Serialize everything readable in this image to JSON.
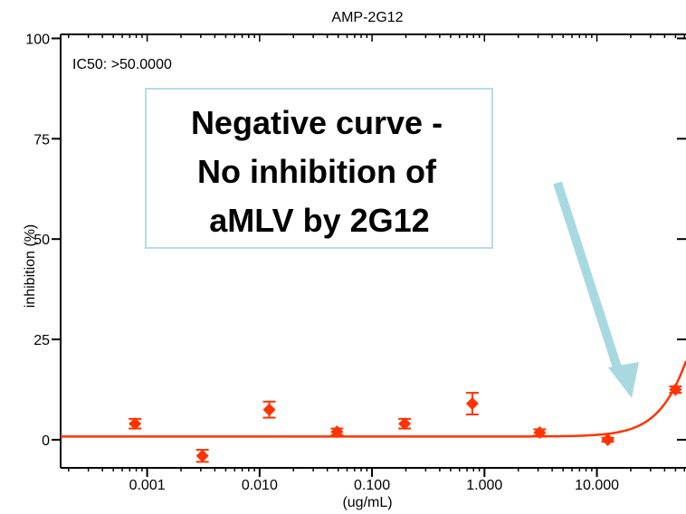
{
  "chart_data": {
    "type": "scatter",
    "title": "AMP-2G12",
    "xlabel": "(ug/mL)",
    "ylabel": "inhibition (%)",
    "x_scale": "log",
    "xlim": [
      0.00017,
      62
    ],
    "ylim": [
      -7,
      101
    ],
    "x_ticks": [
      {
        "value": 0.001,
        "label": "0.001"
      },
      {
        "value": 0.01,
        "label": "0.010"
      },
      {
        "value": 0.1,
        "label": "0.100"
      },
      {
        "value": 1,
        "label": "1.000"
      },
      {
        "value": 10,
        "label": "10.000"
      }
    ],
    "y_ticks": [
      {
        "value": 0,
        "label": "0"
      },
      {
        "value": 25,
        "label": "25"
      },
      {
        "value": 50,
        "label": "50"
      },
      {
        "value": 75,
        "label": "75"
      },
      {
        "value": 100,
        "label": "100"
      }
    ],
    "annotation": "IC50: >50.0000",
    "points": [
      {
        "x": 0.00078,
        "y": 4.0,
        "err": 1.2
      },
      {
        "x": 0.0031,
        "y": -4.0,
        "err": 1.5
      },
      {
        "x": 0.0122,
        "y": 7.5,
        "err": 2.0
      },
      {
        "x": 0.0488,
        "y": 2.0,
        "err": 0.8
      },
      {
        "x": 0.195,
        "y": 4.0,
        "err": 1.2
      },
      {
        "x": 0.78,
        "y": 9.0,
        "err": 2.7
      },
      {
        "x": 3.1,
        "y": 1.8,
        "err": 0.8
      },
      {
        "x": 12.5,
        "y": 0.0,
        "err": 0.5
      },
      {
        "x": 50,
        "y": 12.5,
        "err": 0.8
      }
    ],
    "fit": {
      "bottom": 0.8,
      "ic50": 120,
      "hill": 2.2
    },
    "colors": {
      "series": "#ff3300",
      "callout_border": "#b6dde2",
      "arrow": "#a9d9e0"
    }
  },
  "callout": {
    "lines": [
      "Negative curve -",
      "No inhibition of",
      " aMLV by 2G12"
    ]
  }
}
